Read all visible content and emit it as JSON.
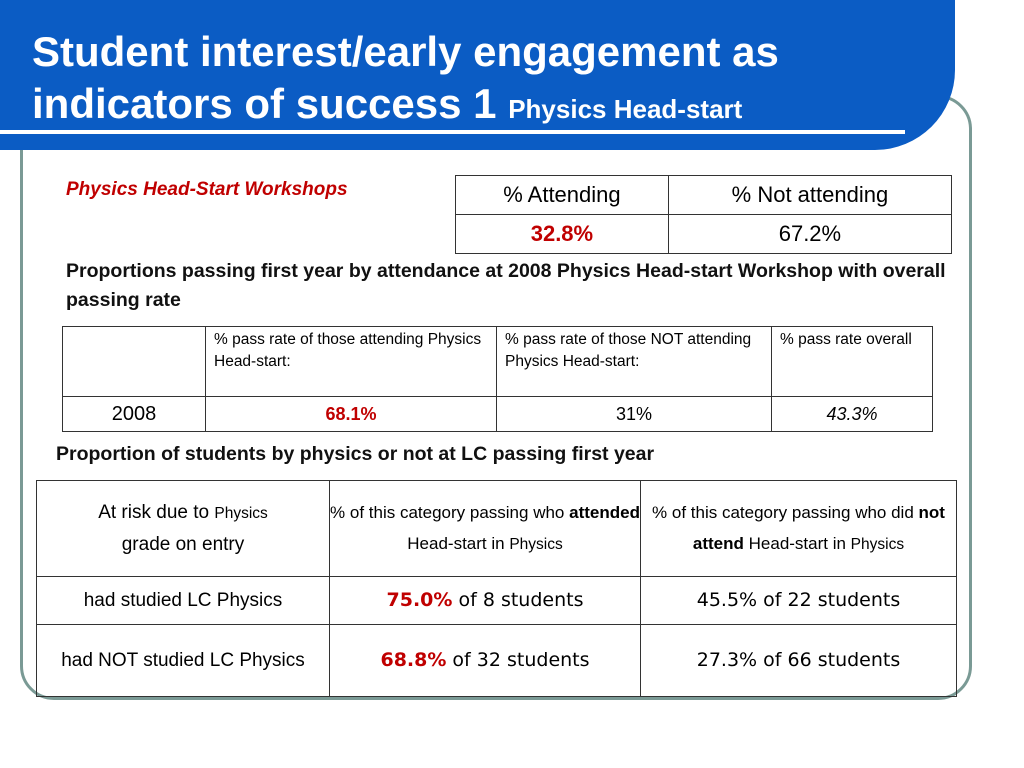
{
  "slide": {
    "title_main": "Student interest/early engagement as indicators of success 1",
    "title_sub": "Physics Head-start",
    "subtitle": "Physics Head-Start Workshops"
  },
  "table1": {
    "headers": [
      "% Attending",
      "% Not attending"
    ],
    "values": [
      "32.8%",
      "67.2%"
    ]
  },
  "section2": {
    "heading": "Proportions passing first year by attendance at 2008 Physics Head-start Workshop with overall passing rate",
    "headers": [
      "",
      "% pass rate of those attending Physics Head-start:",
      "% pass rate of those NOT attending Physics Head-start:",
      "% pass rate overall"
    ],
    "row": [
      "2008",
      "68.1%",
      "31%",
      "43.3%"
    ]
  },
  "section3": {
    "heading": "Proportion of students by physics or not at LC passing first year",
    "header_col1_a": "At risk due to ",
    "header_col1_b": "Physics",
    "header_col1_c": " grade on entry",
    "header_col2_a": "%  of this category  passing who ",
    "header_col2_b": "attended",
    "header_col2_c": " Head-start in ",
    "header_col2_d": "Physics",
    "header_col3_a": "%  of this category passing who did ",
    "header_col3_b": "not attend",
    "header_col3_c": " Head-start in ",
    "header_col3_d": "Physics",
    "rows": [
      {
        "label": "had  studied LC Physics",
        "att_pct": "75.0%",
        "att_rest": " of 8 students",
        "not_att": "45.5% of 22 students"
      },
      {
        "label": "had NOT  studied LC Physics",
        "att_pct": "68.8%",
        "att_rest": " of 32 students",
        "not_att": "27.3% of  66 students"
      }
    ]
  },
  "colors": {
    "title_bar": "#0b5cc4",
    "accent_red": "#c00000",
    "frame": "#7a9a95"
  }
}
